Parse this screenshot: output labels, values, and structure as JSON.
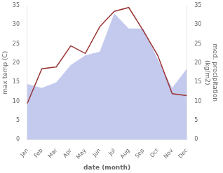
{
  "chart_data": {
    "type": "line",
    "xlabel": "date (month)",
    "ylabel": "max temp (C)",
    "y2label": "med. precipitation\n(kg/m2)",
    "categories": [
      "Jan",
      "Feb",
      "Mar",
      "Apr",
      "May",
      "Jun",
      "Jul",
      "Aug",
      "Sep",
      "Oct",
      "Nov",
      "Dec"
    ],
    "series": [
      {
        "type": "area",
        "axis": "y2",
        "color": "#b0b8e8",
        "values": [
          14.5,
          13.5,
          15.0,
          19.5,
          22.0,
          23.0,
          33.0,
          29.0,
          29.0,
          21.0,
          13.5,
          18.5
        ]
      },
      {
        "type": "line",
        "color": "#993333",
        "values": [
          9.5,
          18.5,
          19.0,
          24.5,
          22.5,
          29.5,
          33.5,
          34.5,
          28.5,
          22.0,
          12.0,
          11.5
        ]
      }
    ],
    "ylim": [
      0,
      35
    ],
    "yticks": [
      0,
      5,
      10,
      15,
      20,
      25,
      30,
      35
    ],
    "y2lim": [
      0,
      35
    ],
    "y2ticks": [
      0,
      5,
      10,
      15,
      20,
      25,
      30,
      35
    ],
    "grid": false
  }
}
